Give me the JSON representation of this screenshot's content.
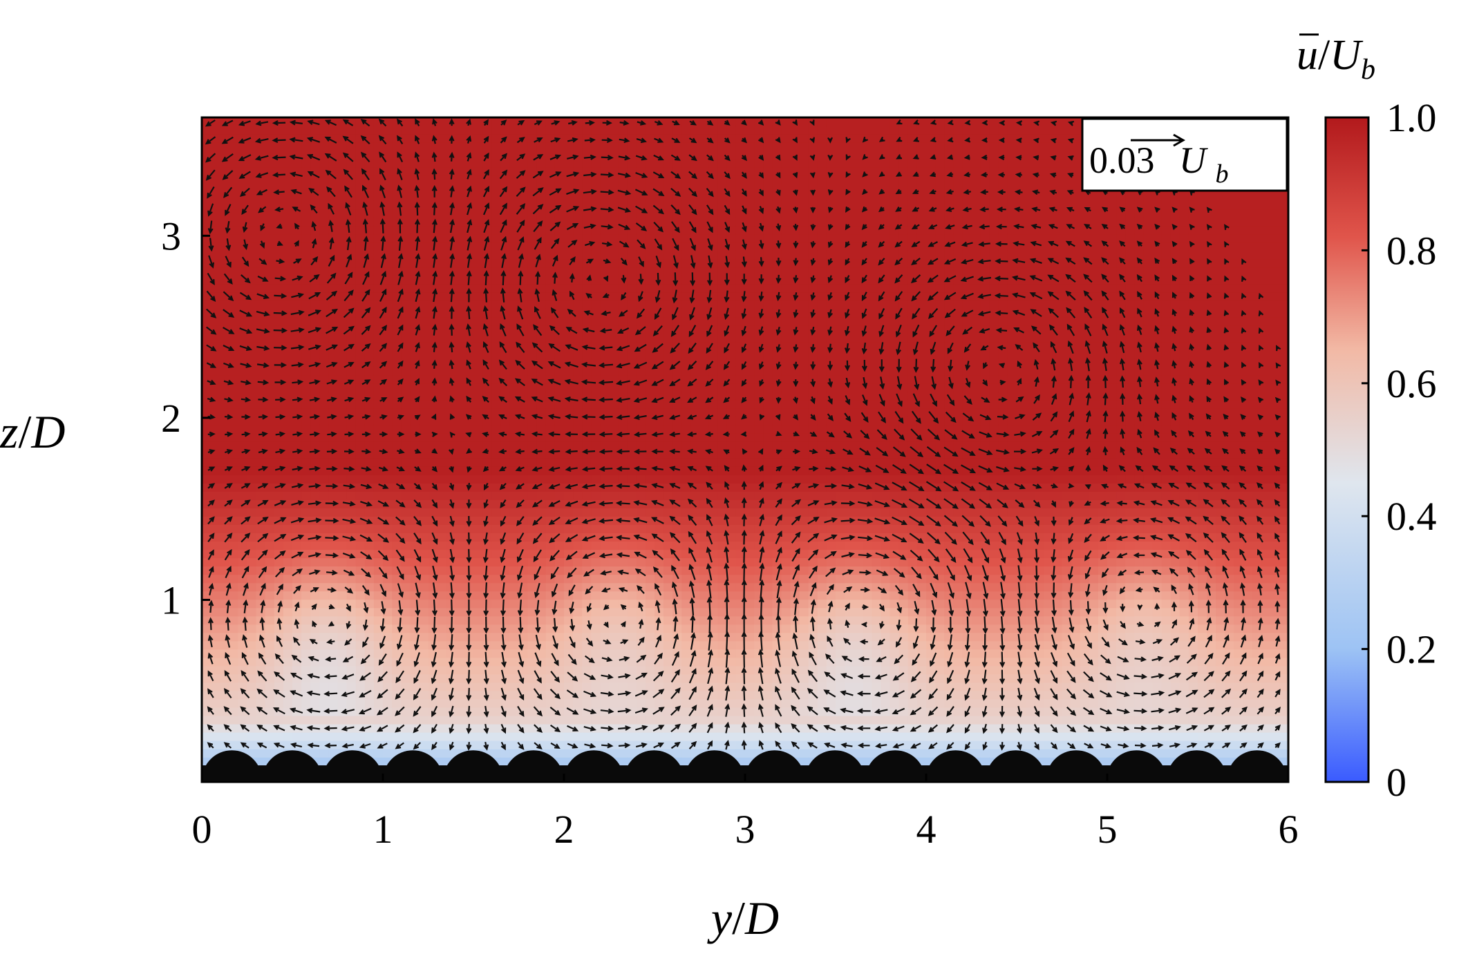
{
  "chart_data": {
    "type": "heatmap",
    "title": "",
    "xlabel": {
      "var": "y",
      "sep": "/",
      "den": "D"
    },
    "ylabel": {
      "var": "z",
      "sep": "/",
      "den": "D"
    },
    "xlim": [
      0,
      6
    ],
    "ylim": [
      0,
      3.65
    ],
    "x_ticks": [
      "0",
      "1",
      "2",
      "3",
      "4",
      "5",
      "6"
    ],
    "y_ticks": [
      "1",
      "2",
      "3"
    ],
    "y_tick_values": [
      1,
      2,
      3
    ],
    "colorbar": {
      "title": {
        "var": "u",
        "sep": "/",
        "den": "U",
        "sub": "b"
      },
      "range": [
        0,
        1
      ],
      "ticks": [
        "0",
        "0.2",
        "0.4",
        "0.6",
        "0.8",
        "1.0"
      ],
      "tick_values": [
        0,
        0.2,
        0.4,
        0.6,
        0.8,
        1.0
      ],
      "colors": [
        "#3a5bff",
        "#9dc3f4",
        "#dfe6ee",
        "#f2b9a5",
        "#e0554b",
        "#b2191c"
      ]
    },
    "reference_vector": {
      "value": "0.03",
      "unit": "U",
      "unit_sub": "b"
    },
    "roughness": {
      "count": 18,
      "diameter": 0.333,
      "color": "#0a0a0a"
    },
    "vortex_centers": [
      {
        "y": 0.45,
        "z": 3.0,
        "sense": 1
      },
      {
        "y": 2.2,
        "z": 2.75,
        "sense": -1
      },
      {
        "y": 4.4,
        "z": 2.25,
        "sense": 1
      },
      {
        "y": 0.7,
        "z": 0.9,
        "sense": -1
      },
      {
        "y": 2.3,
        "z": 0.9,
        "sense": 1
      },
      {
        "y": 3.65,
        "z": 0.9,
        "sense": -1
      },
      {
        "y": 5.2,
        "z": 0.95,
        "sense": 1
      }
    ],
    "low_speed_regions": [
      {
        "y": 0.7,
        "z": 0.75,
        "level": 0.7
      },
      {
        "y": 2.3,
        "z": 0.85,
        "level": 0.78
      },
      {
        "y": 3.6,
        "z": 0.75,
        "level": 0.72
      },
      {
        "y": 5.2,
        "z": 0.85,
        "level": 0.78
      }
    ]
  }
}
